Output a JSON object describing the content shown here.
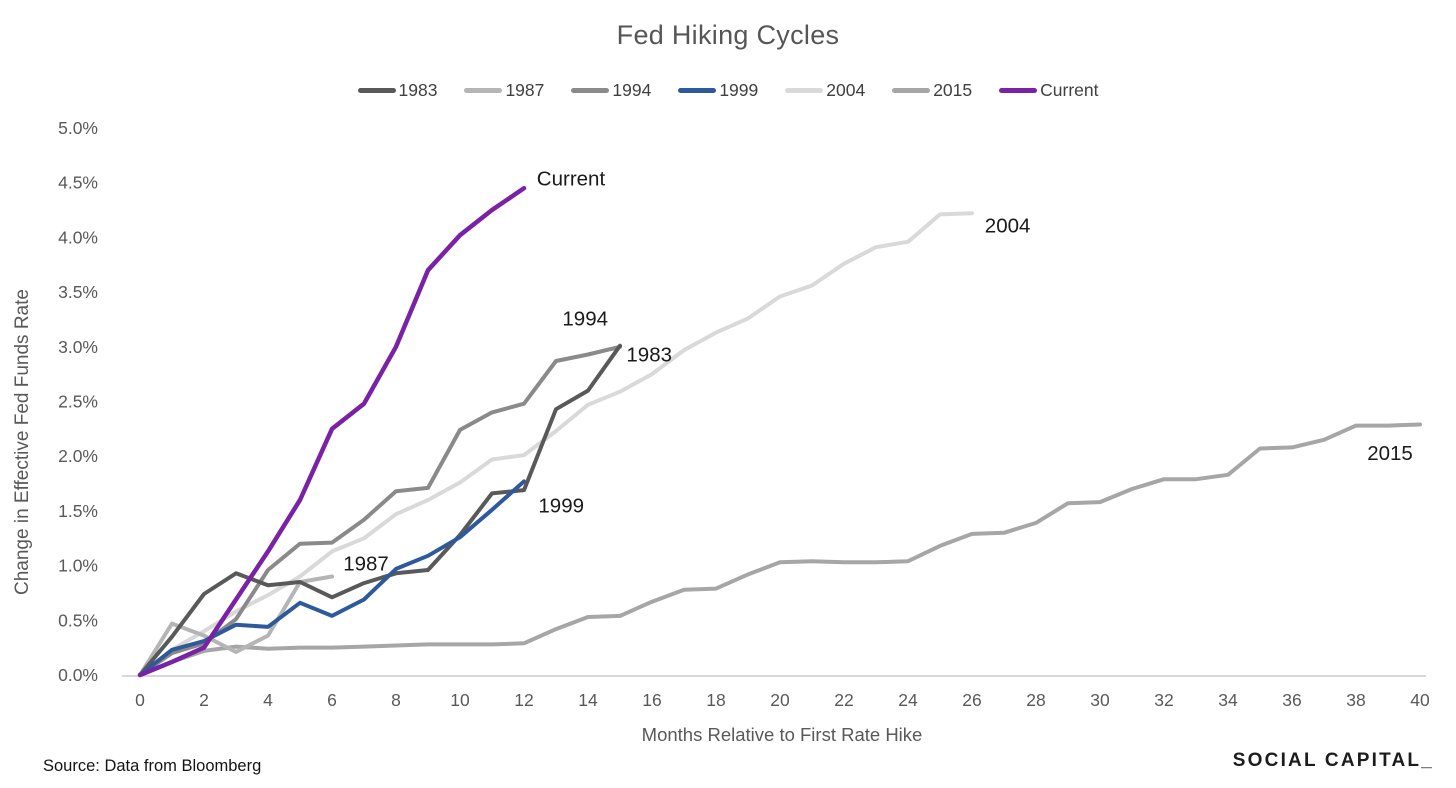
{
  "header": {
    "title": "Fed Hiking Cycles"
  },
  "footer": {
    "source": "Source: Data from Bloomberg",
    "brand": "SOCIAL CAPITAL_"
  },
  "chart_data": {
    "type": "line",
    "title": "Fed Hiking Cycles",
    "xlabel": "Months Relative to First Rate Hike",
    "ylabel": "Change in Effective Fed Funds Rate",
    "xlim": [
      0,
      40
    ],
    "ylim_percent": [
      0.0,
      5.0
    ],
    "grid": false,
    "legend_position": "top",
    "x_tick_values": [
      0,
      2,
      4,
      6,
      8,
      10,
      12,
      14,
      16,
      18,
      20,
      22,
      24,
      26,
      28,
      30,
      32,
      34,
      36,
      38,
      40
    ],
    "x_tick_labels": [
      "0",
      "2",
      "4",
      "6",
      "8",
      "10",
      "12",
      "14",
      "16",
      "18",
      "20",
      "22",
      "24",
      "26",
      "28",
      "30",
      "32",
      "34",
      "36",
      "38",
      "40"
    ],
    "y_tick_values": [
      0,
      0.5,
      1.0,
      1.5,
      2.0,
      2.5,
      3.0,
      3.5,
      4.0,
      4.5,
      5.0
    ],
    "y_tick_labels": [
      "0.0%",
      "0.5%",
      "1.0%",
      "1.5%",
      "2.0%",
      "2.5%",
      "3.0%",
      "3.5%",
      "4.0%",
      "4.5%",
      "5.0%"
    ],
    "series": [
      {
        "name": "1983",
        "color": "#595959",
        "stroke_width": 4,
        "values": [
          0,
          0.35,
          0.74,
          0.93,
          0.82,
          0.85,
          0.71,
          0.84,
          0.93,
          0.96,
          1.28,
          1.66,
          1.69,
          2.43,
          2.6,
          3.01
        ]
      },
      {
        "name": "1987",
        "color": "#b5b5b5",
        "stroke_width": 4,
        "values": [
          0,
          0.47,
          0.36,
          0.21,
          0.36,
          0.85,
          0.9
        ]
      },
      {
        "name": "1994",
        "color": "#8a8a8a",
        "stroke_width": 4,
        "values": [
          0,
          0.2,
          0.29,
          0.51,
          0.96,
          1.2,
          1.21,
          1.42,
          1.68,
          1.71,
          2.24,
          2.4,
          2.48,
          2.87,
          2.93,
          3.0
        ]
      },
      {
        "name": "1999",
        "color": "#2e5a9c",
        "stroke_width": 4,
        "values": [
          0,
          0.23,
          0.31,
          0.46,
          0.44,
          0.66,
          0.54,
          0.69,
          0.97,
          1.09,
          1.26,
          1.51,
          1.77
        ]
      },
      {
        "name": "2004",
        "color": "#d9d9d9",
        "stroke_width": 4,
        "values": [
          0,
          0.23,
          0.4,
          0.58,
          0.73,
          0.9,
          1.13,
          1.25,
          1.47,
          1.6,
          1.76,
          1.97,
          2.01,
          2.23,
          2.47,
          2.59,
          2.75,
          2.97,
          3.13,
          3.26,
          3.46,
          3.56,
          3.76,
          3.91,
          3.96,
          4.21,
          4.22
        ]
      },
      {
        "name": "2015",
        "color": "#a6a6a6",
        "stroke_width": 4,
        "values": [
          0,
          0.12,
          0.22,
          0.26,
          0.24,
          0.25,
          0.25,
          0.26,
          0.27,
          0.28,
          0.28,
          0.28,
          0.29,
          0.42,
          0.53,
          0.54,
          0.67,
          0.78,
          0.79,
          0.92,
          1.03,
          1.04,
          1.03,
          1.03,
          1.04,
          1.18,
          1.29,
          1.3,
          1.39,
          1.57,
          1.58,
          1.7,
          1.79,
          1.79,
          1.83,
          2.07,
          2.08,
          2.15,
          2.28,
          2.28,
          2.29
        ]
      },
      {
        "name": "Current",
        "color": "#7a22a6",
        "stroke_width": 4.5,
        "values": [
          0,
          0.12,
          0.25,
          0.69,
          1.13,
          1.6,
          2.25,
          2.48,
          3.0,
          3.7,
          4.02,
          4.25,
          4.45
        ]
      }
    ],
    "annotations": [
      {
        "text": "Current",
        "x": 12.4,
        "y": 4.54
      },
      {
        "text": "2004",
        "x": 26.4,
        "y": 4.11
      },
      {
        "text": "1994",
        "x": 13.2,
        "y": 3.26
      },
      {
        "text": "1983",
        "x": 15.2,
        "y": 2.93
      },
      {
        "text": "1999",
        "x": 12.45,
        "y": 1.55
      },
      {
        "text": "1987",
        "x": 6.35,
        "y": 1.02
      },
      {
        "text": "2015",
        "x": 38.35,
        "y": 2.03
      }
    ]
  }
}
